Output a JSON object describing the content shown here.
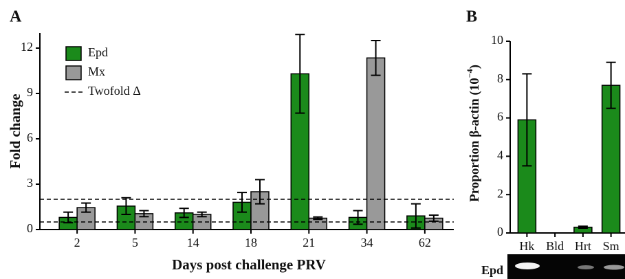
{
  "chart_data": [
    {
      "type": "bar",
      "panel": "A",
      "xlabel": "Days post challenge PRV",
      "ylabel": "Fold change",
      "categories": [
        "2",
        "5",
        "14",
        "18",
        "21",
        "34",
        "62"
      ],
      "series": [
        {
          "name": "Epd",
          "color": "#1b8a1b",
          "values": [
            0.8,
            1.55,
            1.1,
            1.8,
            10.3,
            0.8,
            0.9
          ],
          "errors": [
            0.35,
            0.55,
            0.3,
            0.65,
            2.6,
            0.45,
            0.8
          ]
        },
        {
          "name": "Mx",
          "color": "#999999",
          "values": [
            1.45,
            1.05,
            1.0,
            2.5,
            0.75,
            11.35,
            0.75
          ],
          "errors": [
            0.3,
            0.2,
            0.15,
            0.8,
            0.08,
            1.15,
            0.2
          ]
        }
      ],
      "reference_lines": {
        "name": "Twofold Δ",
        "values": [
          2,
          0.5
        ]
      },
      "ylim": [
        0,
        13
      ],
      "yticks": [
        0,
        3,
        6,
        9,
        12
      ]
    },
    {
      "type": "bar",
      "panel": "B",
      "ylabel": "Proportion β-actin (10",
      "ylabel_sup": "−4",
      "ylabel_end": ")",
      "categories": [
        "Hk",
        "Bld",
        "Hrt",
        "Sm"
      ],
      "series": [
        {
          "color": "#1b8a1b",
          "values": [
            5.9,
            0,
            0.3,
            7.7
          ],
          "errors": [
            2.4,
            0,
            0.05,
            1.2
          ]
        }
      ],
      "gel_label": "Epd",
      "ylim": [
        0,
        10
      ],
      "yticks": [
        0,
        2,
        4,
        6,
        8,
        10
      ]
    }
  ]
}
